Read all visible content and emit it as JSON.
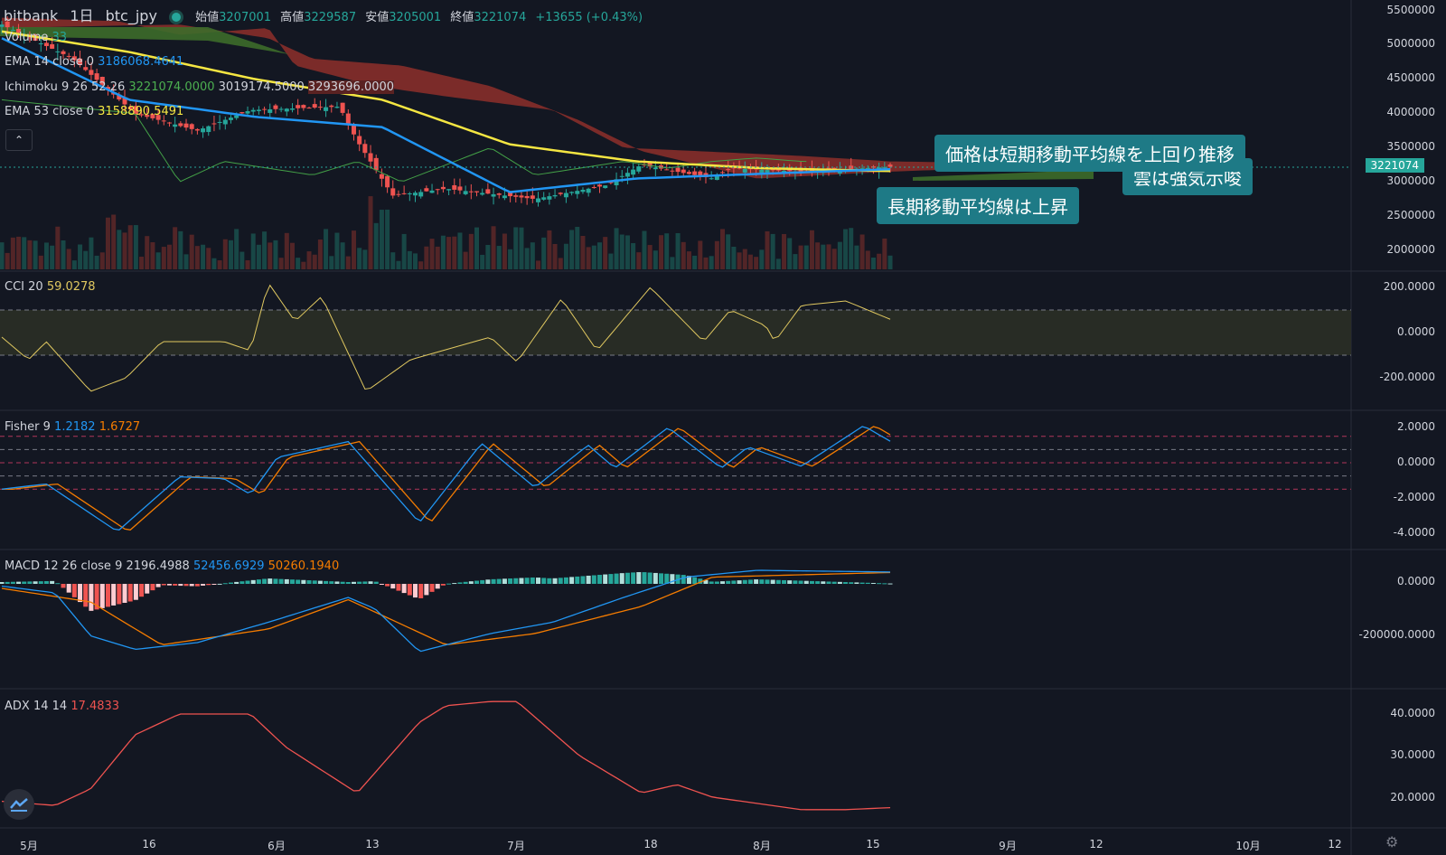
{
  "header": {
    "exchange": "bitbank",
    "interval": "1日",
    "symbol": "btc_jpy",
    "open_label": "始値",
    "open": "3207001",
    "high_label": "高値",
    "high": "3229587",
    "low_label": "安値",
    "low": "3205001",
    "close_label": "終値",
    "close": "3221074",
    "change": "+13655 (+0.43%)"
  },
  "legend": {
    "volume_label": "Volume",
    "volume_value": "33",
    "ema14_label": "EMA 14 close 0",
    "ema14_value": "3186068.4641",
    "ichimoku_label": "Ichimoku 9 26 52 26",
    "ichimoku_v1": "3221074.0000",
    "ichimoku_v2": "3019174.5000",
    "ichimoku_v3": "3293696.0000",
    "ema53_label": "EMA 53 close 0",
    "ema53_value": "3158890.5491",
    "cci_label": "CCI 20",
    "cci_value": "59.0278",
    "fisher_label": "Fisher 9",
    "fisher_v1": "1.2182",
    "fisher_v2": "1.6727",
    "macd_label": "MACD 12 26 close 9",
    "macd_v1": "2196.4988",
    "macd_v2": "52456.6929",
    "macd_v3": "50260.1940",
    "adx_label": "ADX 14 14",
    "adx_value": "17.4833"
  },
  "callouts": {
    "c1": "価格は短期移動平均線を上回り推移",
    "c2": "雲は強気示唆",
    "c3": "長期移動平均線は上昇"
  },
  "last_price_tag": "3221074",
  "price_axis": [
    "5500000",
    "5000000",
    "4500000",
    "4000000",
    "3500000",
    "3000000",
    "2500000",
    "2000000"
  ],
  "cci_axis": [
    "200.0000",
    "0.0000",
    "-200.0000"
  ],
  "fisher_axis": [
    "2.0000",
    "0.0000",
    "-2.0000",
    "-4.0000"
  ],
  "macd_axis": [
    "0.0000",
    "-200000.0000"
  ],
  "adx_axis": [
    "40.0000",
    "30.0000",
    "20.0000"
  ],
  "time_axis": [
    "5月",
    "16",
    "6月",
    "13",
    "7月",
    "18",
    "8月",
    "15",
    "9月",
    "12",
    "10月",
    "12"
  ],
  "colors": {
    "bg": "#131722",
    "up": "#26a69a",
    "down": "#ef5350",
    "ema14": "#2196f3",
    "ema53": "#f5e642",
    "cloud_bear": "#8e2f2a",
    "cloud_bull": "#3d6b2a",
    "cci": "#e0c860",
    "fisher1": "#2196f3",
    "fisher2": "#f57c00",
    "adx": "#ef5350"
  },
  "chart_data": [
    {
      "type": "line",
      "title": "bitbank 1日 btc_jpy",
      "x": [
        "5月",
        "16",
        "6月",
        "13",
        "7月",
        "18",
        "8月",
        "15"
      ],
      "series": [
        {
          "name": "EMA 14 close 0",
          "values": [
            5100000,
            4200000,
            3950000,
            3800000,
            2850000,
            3050000,
            3120000,
            3186068
          ]
        },
        {
          "name": "EMA 53 close 0",
          "values": [
            5200000,
            4900000,
            4500000,
            4200000,
            3550000,
            3300000,
            3200000,
            3158890
          ]
        }
      ],
      "ylim": [
        1800000,
        5600000
      ]
    },
    {
      "type": "line",
      "title": "CCI 20",
      "x": [
        "5月",
        "16",
        "6月",
        "13",
        "7月",
        "18",
        "8月",
        "15"
      ],
      "values": [
        -100,
        -150,
        200,
        -250,
        -20,
        180,
        40,
        59
      ],
      "ylim": [
        -300,
        300
      ]
    },
    {
      "type": "line",
      "title": "Fisher 9",
      "x": [
        "5月",
        "16",
        "6月",
        "13",
        "7月",
        "18",
        "8月",
        "15"
      ],
      "series": [
        {
          "name": "Fisher",
          "values": [
            -2.5,
            -1.5,
            0.5,
            -3.3,
            1.3,
            -1.5,
            1.2,
            1.22
          ]
        },
        {
          "name": "Trigger",
          "values": [
            -2.4,
            -1.7,
            0.4,
            -3.2,
            1.1,
            -1.4,
            1.0,
            1.67
          ]
        }
      ],
      "ylim": [
        -4.5,
        2.5
      ]
    },
    {
      "type": "line",
      "title": "MACD 12 26 close 9",
      "x": [
        "5月",
        "16",
        "6月",
        "13",
        "7月",
        "18",
        "8月",
        "15"
      ],
      "series": [
        {
          "name": "MACD",
          "values": [
            -10000,
            -300000,
            -180000,
            -60000,
            -260000,
            -50000,
            60000,
            52456
          ]
        },
        {
          "name": "Signal",
          "values": [
            -10000,
            -260000,
            -200000,
            -60000,
            -240000,
            -80000,
            40000,
            50260
          ]
        }
      ],
      "ylim": [
        -350000,
        50000
      ]
    },
    {
      "type": "line",
      "title": "ADX 14 14",
      "x": [
        "5月",
        "16",
        "6月",
        "13",
        "7月",
        "18",
        "8月",
        "15"
      ],
      "values": [
        18,
        40,
        40,
        21,
        43,
        30,
        20,
        17.48
      ],
      "ylim": [
        12,
        45
      ]
    }
  ]
}
